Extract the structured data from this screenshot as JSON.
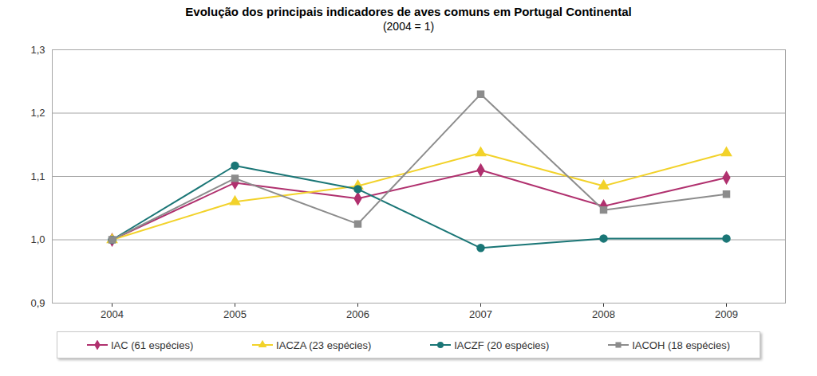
{
  "chart_data": {
    "type": "line",
    "title": "Evolução dos principais indicadores de aves comuns em Portugal Continental",
    "subtitle": "(2004 = 1)",
    "categories": [
      "2004",
      "2005",
      "2006",
      "2007",
      "2008",
      "2009"
    ],
    "series": [
      {
        "name": "IAC (61 espécies)",
        "color": "#b0306e",
        "marker": "diamond",
        "values": [
          1.0,
          1.09,
          1.065,
          1.11,
          1.053,
          1.098
        ]
      },
      {
        "name": "IACZA (23 espécies)",
        "color": "#f2d22a",
        "marker": "triangle",
        "values": [
          1.0,
          1.06,
          1.085,
          1.137,
          1.085,
          1.137
        ]
      },
      {
        "name": "IACZF (20 espécies)",
        "color": "#1a7676",
        "marker": "circle",
        "values": [
          1.0,
          1.117,
          1.08,
          0.987,
          1.002,
          1.002
        ]
      },
      {
        "name": "IACOH (18 espécies)",
        "color": "#8c8c8c",
        "marker": "square",
        "values": [
          1.0,
          1.097,
          1.025,
          1.23,
          1.047,
          1.072
        ]
      }
    ],
    "ylim": [
      0.9,
      1.3
    ],
    "yticks": [
      {
        "value": 0.9,
        "label": "0,9"
      },
      {
        "value": 1.0,
        "label": "1,0"
      },
      {
        "value": 1.1,
        "label": "1,1"
      },
      {
        "value": 1.2,
        "label": "1,2"
      },
      {
        "value": 1.3,
        "label": "1,3"
      }
    ],
    "grid": true,
    "legend": "bottom"
  }
}
